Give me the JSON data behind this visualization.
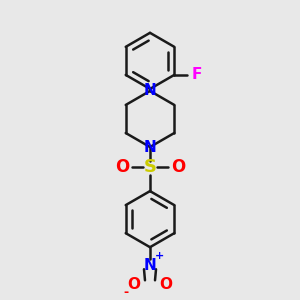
{
  "bg_color": "#e8e8e8",
  "bond_color": "#1a1a1a",
  "N_color": "#0000ff",
  "O_color": "#ff0000",
  "S_color": "#cccc00",
  "F_color": "#ff00ff",
  "line_width": 1.8,
  "font_size": 11,
  "figsize": [
    3.0,
    3.0
  ],
  "xlim": [
    -1.0,
    1.0
  ],
  "ylim": [
    -1.4,
    1.4
  ]
}
